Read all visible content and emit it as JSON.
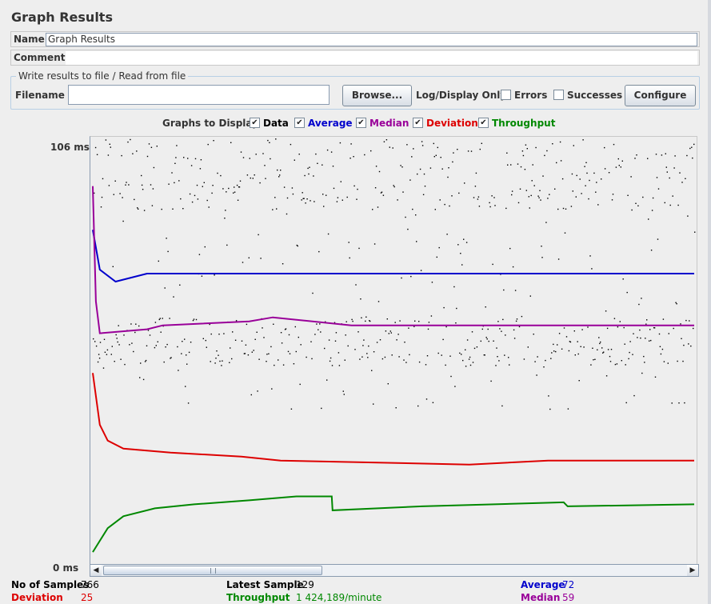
{
  "window": {
    "title": "Graph Results"
  },
  "form": {
    "name_label": "Name:",
    "name_value": "Graph Results",
    "comments_label": "Comments:"
  },
  "file_section": {
    "legend": "Write results to file / Read from file",
    "filename_label": "Filename",
    "filename_value": "",
    "browse_button": "Browse...",
    "log_display_label": "Log/Display Only:",
    "errors_label": "Errors",
    "errors_checked": false,
    "successes_label": "Successes",
    "successes_checked": false,
    "configure_button": "Configure"
  },
  "graphs_to_display": {
    "label": "Graphs to Display",
    "items": [
      {
        "label": "Data",
        "checked": true,
        "color": "#000000"
      },
      {
        "label": "Average",
        "checked": true,
        "color": "#0000cc"
      },
      {
        "label": "Median",
        "checked": true,
        "color": "#990099"
      },
      {
        "label": "Deviation",
        "checked": true,
        "color": "#dd0000"
      },
      {
        "label": "Throughput",
        "checked": true,
        "color": "#008800"
      }
    ]
  },
  "graph": {
    "y_max_label": "106  ms",
    "y_min_label": "0  ms"
  },
  "chart_data": {
    "type": "scatter",
    "title": "",
    "xlabel": "",
    "ylabel": "ms",
    "ylim": [
      0,
      106
    ],
    "x_range": [
      1,
      766
    ],
    "grid": false,
    "series": [
      {
        "name": "Average",
        "type": "line",
        "color": "#0000cc",
        "points": [
          [
            1,
            83
          ],
          [
            10,
            73
          ],
          [
            30,
            70
          ],
          [
            70,
            72
          ],
          [
            100,
            72
          ],
          [
            130,
            72
          ],
          [
            766,
            72
          ]
        ]
      },
      {
        "name": "Median",
        "type": "line",
        "color": "#990099",
        "points": [
          [
            1,
            94
          ],
          [
            5,
            65
          ],
          [
            10,
            57
          ],
          [
            70,
            58
          ],
          [
            90,
            59
          ],
          [
            200,
            60
          ],
          [
            230,
            61
          ],
          [
            330,
            59
          ],
          [
            766,
            59
          ]
        ]
      },
      {
        "name": "Deviation",
        "type": "line",
        "color": "#dd0000",
        "points": [
          [
            1,
            47
          ],
          [
            10,
            34
          ],
          [
            20,
            30
          ],
          [
            40,
            28
          ],
          [
            100,
            27
          ],
          [
            190,
            26
          ],
          [
            240,
            25
          ],
          [
            480,
            24
          ],
          [
            580,
            25
          ],
          [
            766,
            25
          ]
        ]
      },
      {
        "name": "Throughput",
        "type": "line",
        "color": "#008800",
        "points": [
          [
            1,
            2
          ],
          [
            20,
            8
          ],
          [
            40,
            11
          ],
          [
            80,
            13
          ],
          [
            130,
            14
          ],
          [
            200,
            15
          ],
          [
            260,
            16
          ],
          [
            305,
            16
          ],
          [
            306,
            12.5
          ],
          [
            420,
            13.5
          ],
          [
            600,
            14.5
          ],
          [
            605,
            13.5
          ],
          [
            766,
            14
          ]
        ]
      },
      {
        "name": "Data",
        "type": "scatter",
        "color": "#000000",
        "points": []
      }
    ]
  },
  "stats": {
    "samples_label": "No of Samples",
    "samples_value": "766",
    "latest_label": "Latest Sample",
    "latest_value": "129",
    "average_label": "Average",
    "average_value": "72",
    "deviation_label": "Deviation",
    "deviation_value": "25",
    "throughput_label": "Throughput",
    "throughput_value": "1 424,189/minute",
    "median_label": "Median",
    "median_value": "59"
  },
  "colors": {
    "data": "#000000",
    "average": "#0000cc",
    "median": "#990099",
    "deviation": "#dd0000",
    "throughput": "#008800"
  }
}
